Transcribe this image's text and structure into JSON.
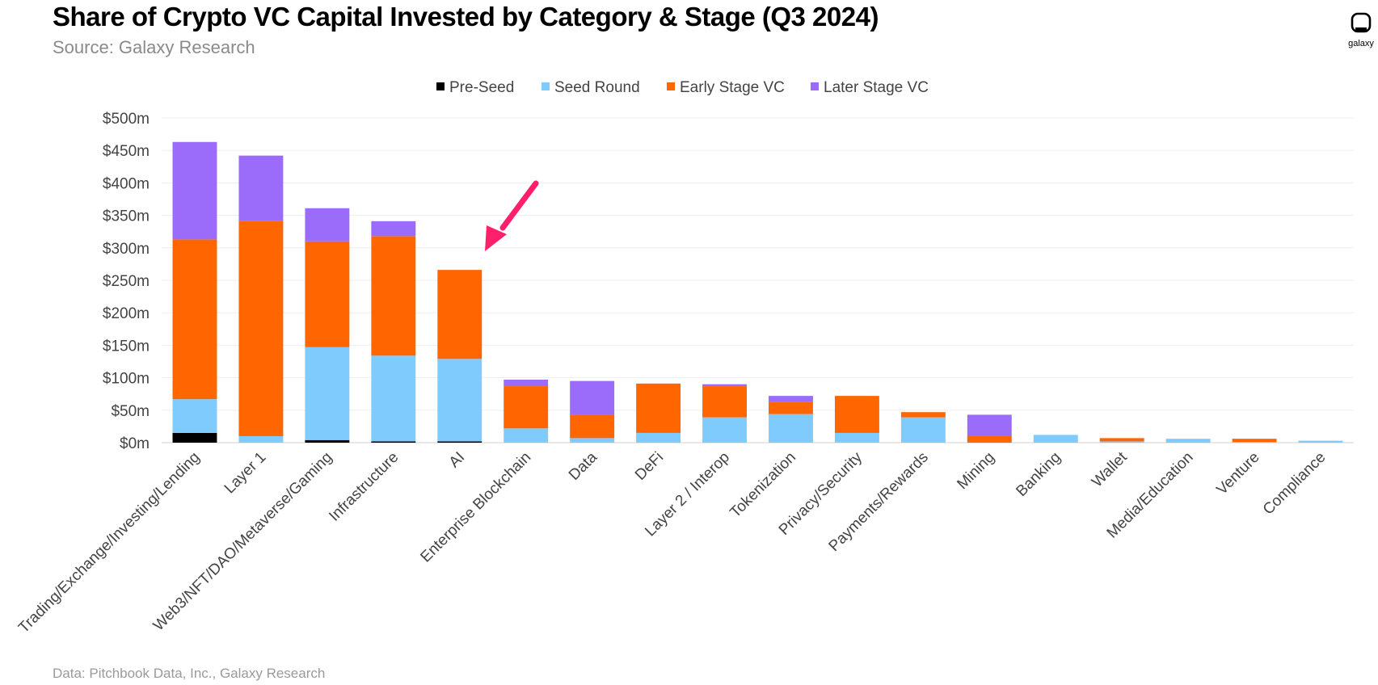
{
  "header": {
    "title": "Share of Crypto VC Capital Invested by Category & Stage (Q3 2024)",
    "subtitle": "Source: Galaxy Research"
  },
  "footer": {
    "note": "Data: Pitchbook Data, Inc., Galaxy Research"
  },
  "logo": {
    "text": "galaxy",
    "icon": "galaxy-logo-icon"
  },
  "annotation": {
    "icon": "arrow-icon",
    "color": "#ff1f6b",
    "points_to": "AI"
  },
  "chart_data": {
    "type": "bar",
    "stacked": true,
    "categories": [
      "Trading/Exchange/Investing/Lending",
      "Layer 1",
      "Web3/NFT/DAO/Metaverse/Gaming",
      "Infrastructure",
      "AI",
      "Enterprise Blockchain",
      "Data",
      "DeFi",
      "Layer 2 / Interop",
      "Tokenization",
      "Privacy/Security",
      "Payments/Rewards",
      "Mining",
      "Banking",
      "Wallet",
      "Media/Education",
      "Venture",
      "Compliance"
    ],
    "series": [
      {
        "name": "Pre-Seed",
        "color": "#000000",
        "values": [
          15,
          0,
          4,
          2,
          2,
          0,
          0,
          0,
          0,
          0,
          0,
          0,
          0,
          0,
          0,
          0,
          0,
          0
        ]
      },
      {
        "name": "Seed Round",
        "color": "#7fcbfe",
        "values": [
          52,
          10,
          143,
          132,
          127,
          22,
          7,
          15,
          39,
          44,
          15,
          39,
          0,
          12,
          2,
          6,
          1,
          3
        ]
      },
      {
        "name": "Early Stage VC",
        "color": "#ff6600",
        "values": [
          246,
          331,
          163,
          184,
          137,
          65,
          36,
          76,
          48,
          19,
          57,
          8,
          10,
          0,
          5,
          0,
          5,
          0
        ]
      },
      {
        "name": "Later Stage VC",
        "color": "#9b6cf9",
        "values": [
          150,
          101,
          51,
          23,
          0,
          10,
          52,
          0,
          3,
          9,
          0,
          0,
          33,
          0,
          0,
          0,
          0,
          0
        ]
      }
    ],
    "yticks": [
      "$0m",
      "$50m",
      "$100m",
      "$150m",
      "$200m",
      "$250m",
      "$300m",
      "$350m",
      "$400m",
      "$450m",
      "$500m"
    ],
    "ylim": [
      0,
      500
    ],
    "grid": true,
    "legend_position": "top-center"
  }
}
